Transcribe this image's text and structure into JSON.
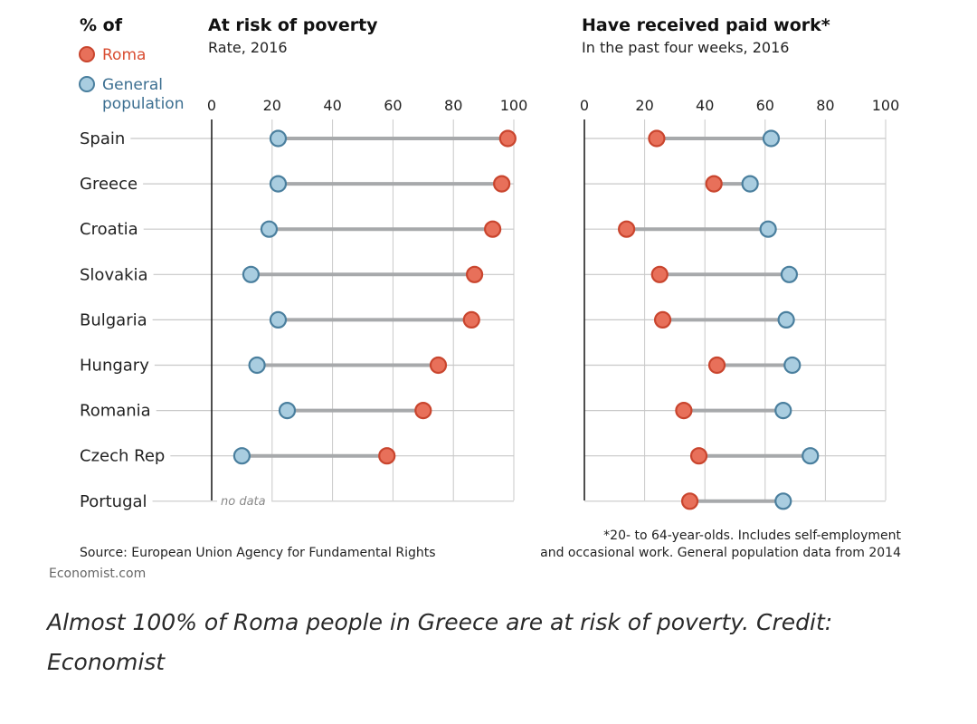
{
  "legend": {
    "heading": "% of",
    "roma": "Roma",
    "general_line1": "General",
    "general_line2": "population"
  },
  "colors": {
    "roma": "#e8705a",
    "roma_stroke": "#c9452e",
    "general": "#a9cde0",
    "general_stroke": "#4a7f9e",
    "connector": "#a7a9ab",
    "grid": "#c8c8c8"
  },
  "countries": [
    "Spain",
    "Greece",
    "Croatia",
    "Slovakia",
    "Bulgaria",
    "Hungary",
    "Romania",
    "Czech Rep",
    "Portugal"
  ],
  "chart_data": [
    {
      "type": "dot-plot",
      "title": "At risk of poverty",
      "subtitle": "Rate, 2016",
      "xlim": [
        0,
        100
      ],
      "xticks": [
        "0",
        "20",
        "40",
        "60",
        "80",
        "100"
      ],
      "grid": true,
      "series": [
        {
          "name": "Roma",
          "values": [
            98,
            96,
            93,
            87,
            86,
            75,
            70,
            58,
            null
          ]
        },
        {
          "name": "General population",
          "values": [
            22,
            22,
            19,
            13,
            22,
            15,
            25,
            10,
            null
          ]
        }
      ],
      "annotations": [
        {
          "country": "Portugal",
          "text": "no data"
        }
      ]
    },
    {
      "type": "dot-plot",
      "title": "Have received paid work*",
      "subtitle": "In the past four weeks, 2016",
      "xlim": [
        0,
        100
      ],
      "xticks": [
        "0",
        "20",
        "40",
        "60",
        "80",
        "100"
      ],
      "grid": true,
      "series": [
        {
          "name": "Roma",
          "values": [
            24,
            43,
            14,
            25,
            26,
            44,
            33,
            38,
            35
          ]
        },
        {
          "name": "General population",
          "values": [
            62,
            55,
            61,
            68,
            67,
            69,
            66,
            75,
            66
          ]
        }
      ]
    }
  ],
  "footnote_line1": "*20- to 64-year-olds. Includes self-employment",
  "footnote_line2": "and occasional work. General population data from 2014",
  "source": "Source: European Union Agency for Fundamental Rights",
  "credit": "Economist.com",
  "caption": "Almost 100% of Roma people in Greece are at risk of poverty. Credit: Economist"
}
